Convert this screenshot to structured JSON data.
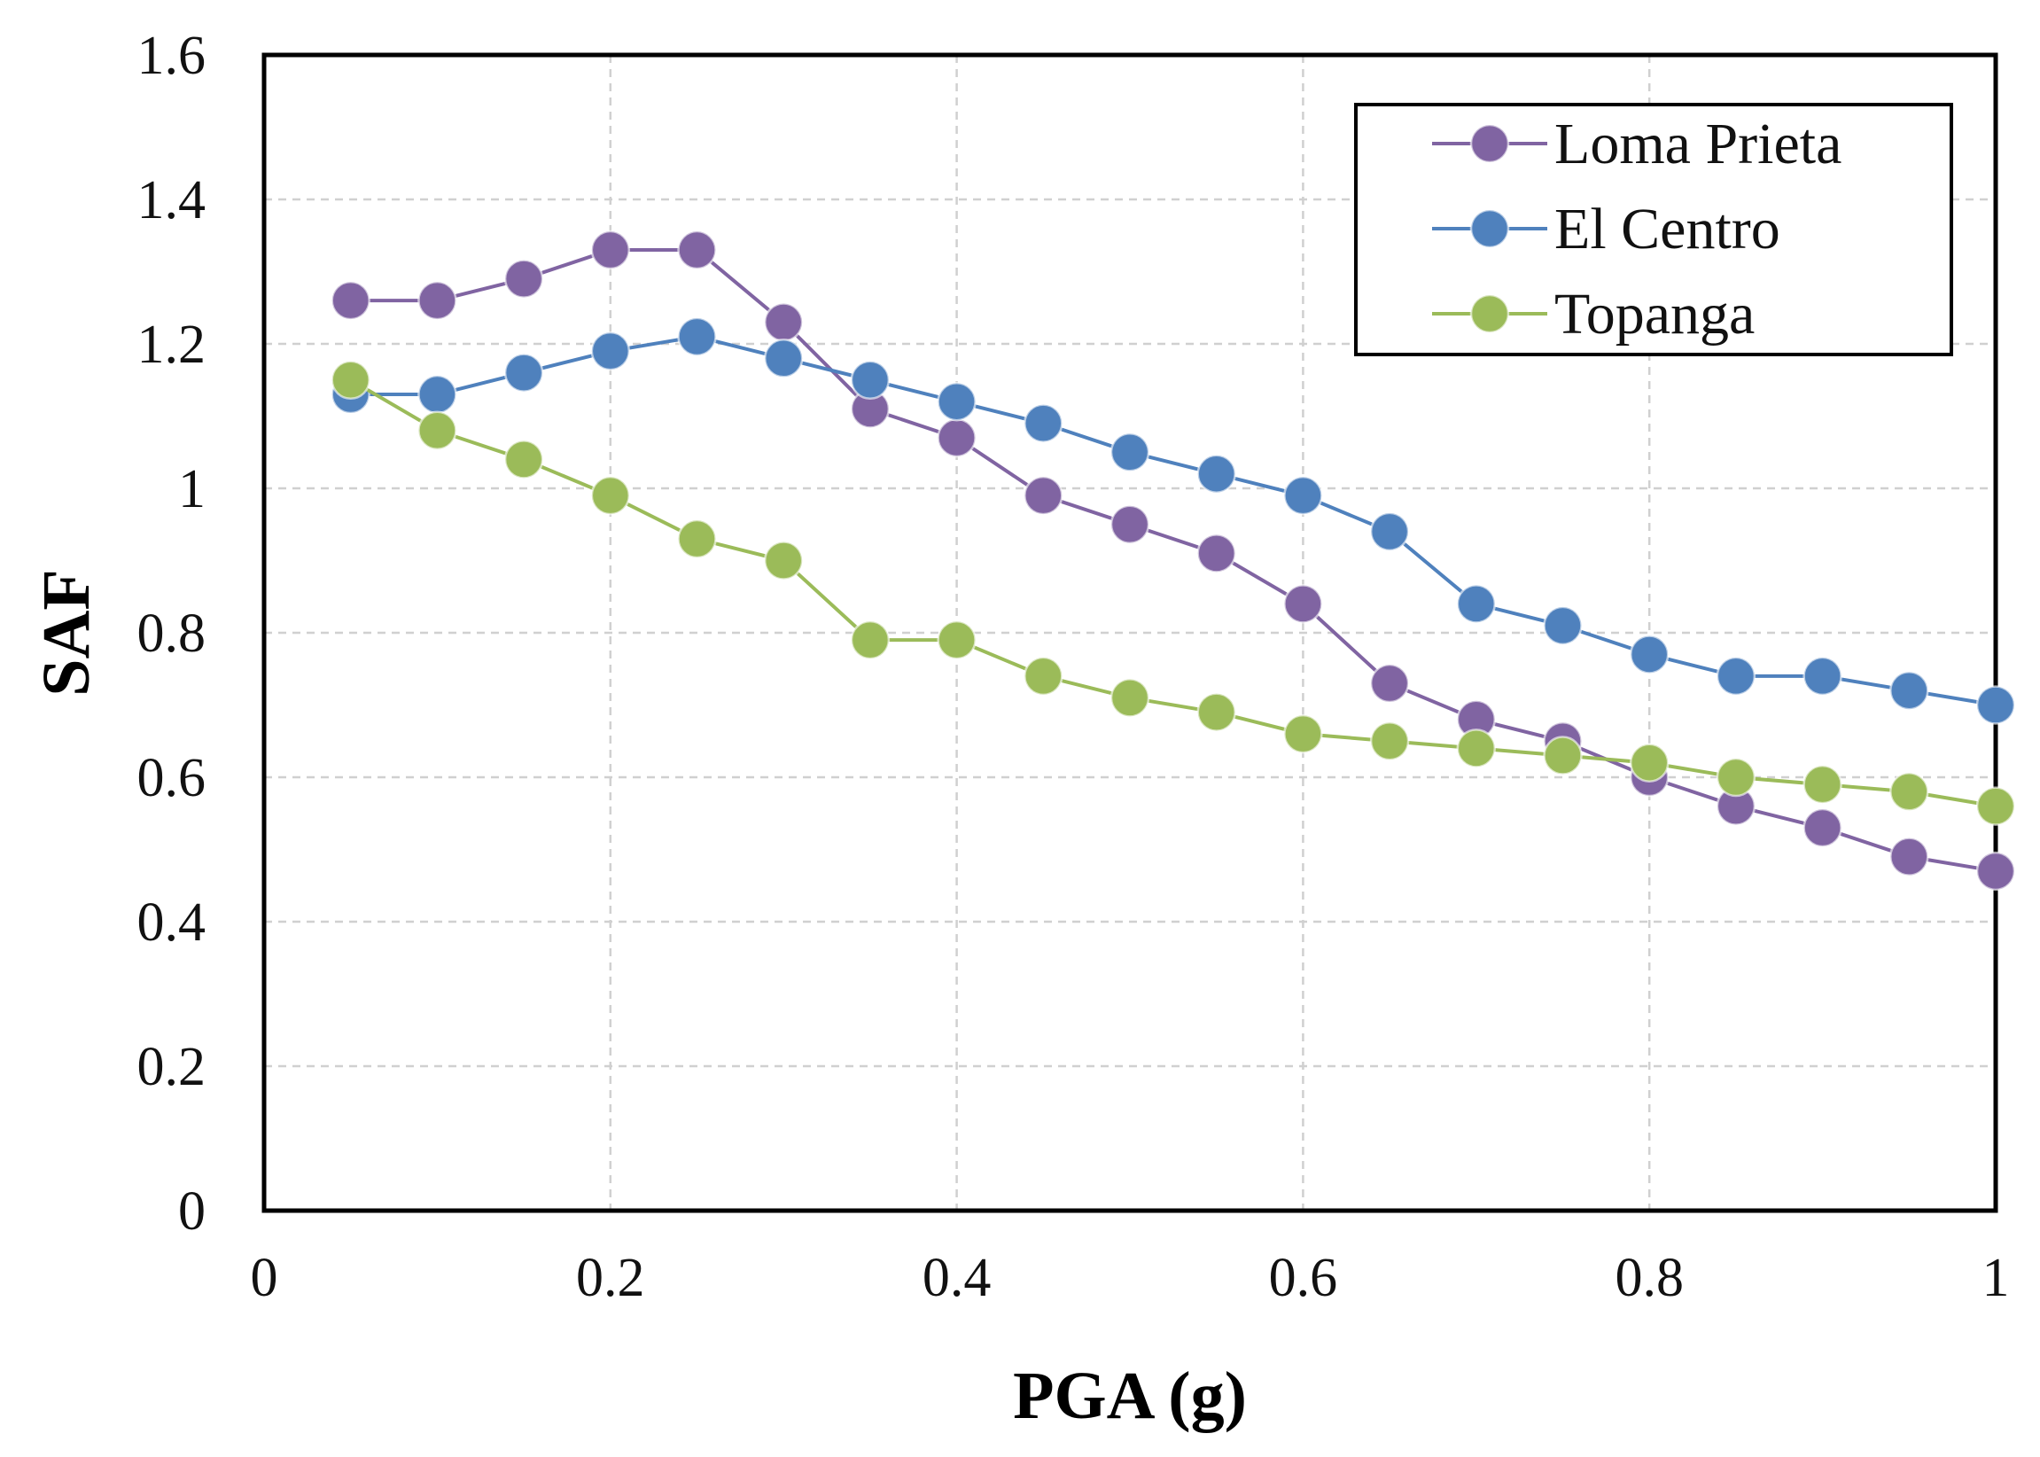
{
  "chart_data": {
    "type": "line",
    "xlabel": "PGA (g)",
    "ylabel": "SAF",
    "xlim": [
      0,
      1
    ],
    "ylim": [
      0,
      1.6
    ],
    "xticks": [
      0,
      0.2,
      0.4,
      0.6,
      0.8,
      1
    ],
    "xtick_labels": [
      "0",
      "0.2",
      "0.4",
      "0.6",
      "0.8",
      "1"
    ],
    "yticks": [
      0,
      0.2,
      0.4,
      0.6,
      0.8,
      1,
      1.2,
      1.4,
      1.6
    ],
    "ytick_labels": [
      "0",
      "0.2",
      "0.4",
      "0.6",
      "0.8",
      "1",
      "1.2",
      "1.4",
      "1.6"
    ],
    "grid": true,
    "legend_position": "top-right",
    "x": [
      0.05,
      0.1,
      0.15,
      0.2,
      0.25,
      0.3,
      0.35,
      0.4,
      0.45,
      0.5,
      0.55,
      0.6,
      0.65,
      0.7,
      0.75,
      0.8,
      0.85,
      0.9,
      0.95,
      1.0
    ],
    "series": [
      {
        "name": "Loma Prieta",
        "color": "#8064a2",
        "values": [
          1.26,
          1.26,
          1.29,
          1.33,
          1.33,
          1.23,
          1.11,
          1.07,
          0.99,
          0.95,
          0.91,
          0.84,
          0.73,
          0.68,
          0.65,
          0.6,
          0.56,
          0.53,
          0.49,
          0.47
        ]
      },
      {
        "name": "El Centro",
        "color": "#4f81bd",
        "values": [
          1.13,
          1.13,
          1.16,
          1.19,
          1.21,
          1.18,
          1.15,
          1.12,
          1.09,
          1.05,
          1.02,
          0.99,
          0.94,
          0.84,
          0.81,
          0.77,
          0.74,
          0.74,
          0.72,
          0.7
        ]
      },
      {
        "name": "Topanga",
        "color": "#9bbb59",
        "values": [
          1.15,
          1.08,
          1.04,
          0.99,
          0.93,
          0.9,
          0.79,
          0.79,
          0.74,
          0.71,
          0.69,
          0.66,
          0.65,
          0.64,
          0.63,
          0.62,
          0.6,
          0.59,
          0.58,
          0.56
        ]
      }
    ]
  }
}
